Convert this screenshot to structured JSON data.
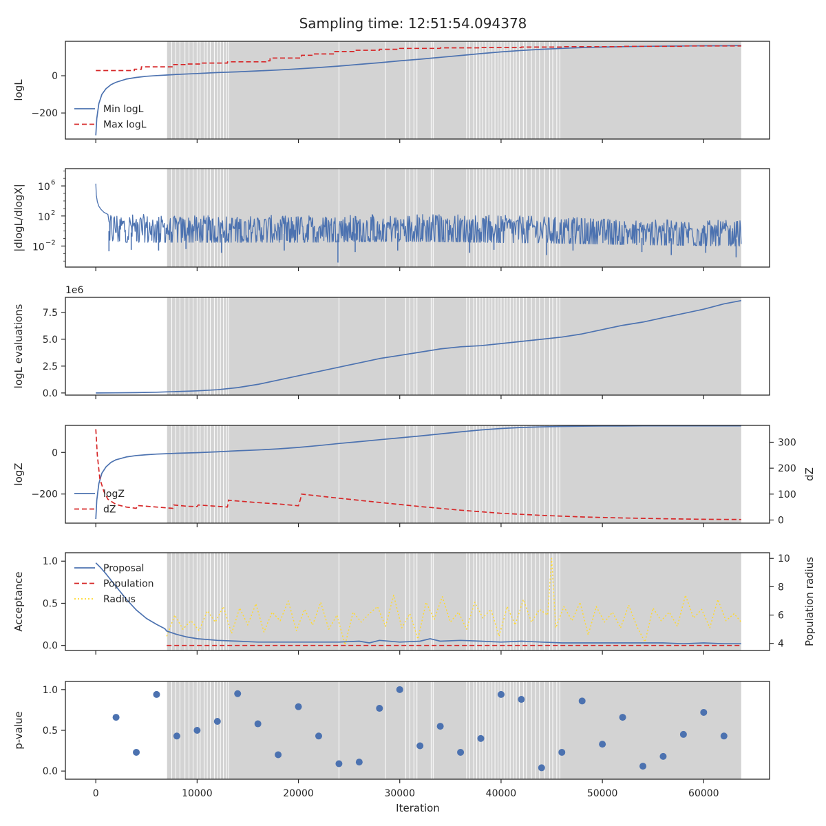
{
  "figure": {
    "title": "Sampling time: 12:51:54.094378",
    "xlabel": "Iteration",
    "x_tick_labels": [
      "0",
      "10000",
      "20000",
      "30000",
      "40000",
      "50000",
      "60000"
    ],
    "xlim": [
      -3000,
      66500
    ],
    "background_colors": {
      "plot": "#ffffff",
      "shaded": "#d3d3d3",
      "boundary_line": "#ffffff"
    },
    "shaded_region": [
      7000,
      63700
    ],
    "shaded_boundaries": [
      7000,
      7500,
      7900,
      8300,
      8800,
      9200,
      9600,
      10000,
      10300,
      10700,
      11000,
      11300,
      11700,
      12000,
      12300,
      12600,
      12900,
      13100,
      24000,
      28600,
      30600,
      31000,
      31400,
      31700,
      33100,
      33300,
      36600,
      36900,
      37300,
      37600,
      37900,
      38200,
      38500,
      38800,
      39100,
      39400,
      39700,
      40000,
      40300,
      40600,
      40900,
      41200,
      41500,
      41800,
      42200,
      42500,
      43000,
      43400,
      43800,
      44300,
      44800,
      45100,
      45500,
      45800
    ],
    "colors": {
      "blue": "#4c72b0",
      "red": "#d62728",
      "yellow": "#ffd92f"
    }
  },
  "chart_data": [
    {
      "type": "line",
      "ylabel": "logL",
      "ylim": [
        -340,
        185
      ],
      "y_ticks": [
        0,
        -200
      ],
      "y_tick_labels": [
        "0",
        "−200"
      ],
      "legend_placement": "lower-left",
      "series": [
        {
          "name": "Min logL",
          "style": "solid",
          "color": "#4c72b0",
          "x": [
            0,
            100,
            300,
            600,
            1000,
            1500,
            2000,
            3000,
            4000,
            5000,
            6000,
            7000,
            8000,
            10000,
            12000,
            14000,
            16000,
            18000,
            20000,
            22000,
            24000,
            26000,
            28000,
            30000,
            32000,
            34000,
            36000,
            38000,
            40000,
            42000,
            44000,
            46000,
            48000,
            50000,
            52000,
            54000,
            56000,
            58000,
            60000,
            62000,
            63700
          ],
          "y": [
            -320,
            -230,
            -150,
            -100,
            -70,
            -48,
            -35,
            -18,
            -9,
            -3,
            1,
            4,
            7,
            12,
            17,
            21,
            26,
            31,
            37,
            44,
            52,
            61,
            70,
            80,
            89,
            99,
            109,
            119,
            128,
            136,
            142,
            147,
            151,
            154,
            156,
            158,
            159,
            160,
            161,
            161,
            162
          ]
        },
        {
          "name": "Max logL",
          "style": "dashed",
          "color": "#d62728",
          "x": [
            0,
            3800,
            3800,
            4500,
            4500,
            7600,
            7600,
            9000,
            9000,
            10300,
            10300,
            13000,
            13000,
            16800,
            16800,
            17200,
            17200,
            20300,
            20300,
            21500,
            21500,
            23500,
            23500,
            25500,
            25500,
            28000,
            28000,
            30000,
            30000,
            34000,
            34000,
            38000,
            38000,
            42000,
            42000,
            46000,
            46000,
            52000,
            52000,
            58000,
            58000,
            63700
          ],
          "y": [
            28,
            28,
            35,
            35,
            48,
            48,
            60,
            60,
            63,
            63,
            68,
            68,
            75,
            75,
            80,
            80,
            95,
            95,
            110,
            110,
            117,
            117,
            130,
            130,
            137,
            137,
            142,
            142,
            147,
            147,
            150,
            150,
            152,
            152,
            154,
            154,
            156,
            156,
            158,
            158,
            160,
            160
          ]
        }
      ]
    },
    {
      "type": "line",
      "ylabel": "|dlogL/dlogX|",
      "y_scale": "log",
      "ylim_log10": [
        -4.8,
        8.3
      ],
      "y_ticks_log10": [
        6,
        2,
        -2
      ],
      "y_tick_labels": [
        "10",
        "10",
        "10"
      ],
      "y_tick_exponents": [
        "6",
        "2",
        "−2"
      ],
      "series": [
        {
          "name": "",
          "style": "solid",
          "color": "#4c72b0",
          "x_range": [
            0,
            63700
          ],
          "spike_x": [
            0,
            50,
            150,
            300,
            500,
            800,
            1200
          ],
          "spike_log10": [
            6.3,
            4.8,
            3.9,
            3.3,
            2.9,
            2.5,
            2.2
          ],
          "envelope_x": [
            0,
            7000,
            14000,
            21000,
            28000,
            33000,
            38000,
            45000,
            52000,
            58000,
            63700
          ],
          "upper_log10": [
            2.6,
            2.0,
            2.1,
            2.1,
            2.2,
            2.3,
            2.2,
            1.9,
            1.6,
            1.5,
            1.4
          ],
          "lower_log10": [
            -1.5,
            -1.5,
            -1.5,
            -1.5,
            -1.4,
            -1.4,
            -1.5,
            -1.6,
            -1.8,
            -1.9,
            -2.0
          ],
          "deep_dips_x": [
            1300,
            3500,
            6200,
            8900,
            12400,
            18600,
            23900,
            25600,
            29800,
            36900,
            39300,
            44500,
            47100,
            53900,
            56800,
            60200,
            63200
          ],
          "deep_dips_log10": [
            -2.7,
            -2.5,
            -2.6,
            -2.4,
            -2.9,
            -2.6,
            -4.2,
            -2.8,
            -2.6,
            -2.9,
            -2.5,
            -3.2,
            -2.6,
            -2.8,
            -3.2,
            -2.9,
            -3.5
          ]
        }
      ]
    },
    {
      "type": "line",
      "ylabel": "logL evaluations",
      "ylim": [
        -0.2,
        8.9
      ],
      "y_ticks": [
        0.0,
        2.5,
        5.0,
        7.5
      ],
      "y_tick_labels": [
        "0.0",
        "2.5",
        "5.0",
        "7.5"
      ],
      "scale_label": "1e6",
      "series": [
        {
          "name": "",
          "style": "solid",
          "color": "#4c72b0",
          "x": [
            0,
            2000,
            4000,
            6000,
            7000,
            8000,
            10000,
            12000,
            14000,
            16000,
            18000,
            20000,
            22000,
            24000,
            26000,
            28000,
            30000,
            32000,
            34000,
            36000,
            38000,
            40000,
            42000,
            44000,
            46000,
            48000,
            50000,
            52000,
            54000,
            56000,
            58000,
            60000,
            62000,
            63700
          ],
          "y": [
            0,
            0.01,
            0.03,
            0.07,
            0.1,
            0.13,
            0.2,
            0.3,
            0.5,
            0.8,
            1.2,
            1.6,
            2.0,
            2.4,
            2.8,
            3.2,
            3.5,
            3.8,
            4.1,
            4.3,
            4.4,
            4.6,
            4.8,
            5.0,
            5.2,
            5.5,
            5.9,
            6.3,
            6.6,
            7.0,
            7.4,
            7.8,
            8.3,
            8.6
          ]
        }
      ]
    },
    {
      "type": "line",
      "ylabel": "logZ",
      "ylim": [
        -340,
        130
      ],
      "y_ticks": [
        0,
        -200
      ],
      "y_tick_labels": [
        "0",
        "−200"
      ],
      "y2label": "dZ",
      "y2lim": [
        -12,
        365
      ],
      "y2_ticks": [
        0,
        100,
        200,
        300
      ],
      "y2_tick_labels": [
        "0",
        "100",
        "200",
        "300"
      ],
      "legend_placement": "lower-left",
      "series": [
        {
          "name": "logZ",
          "style": "solid",
          "color": "#4c72b0",
          "axis": "left",
          "x": [
            0,
            100,
            300,
            600,
            1000,
            1500,
            2000,
            3000,
            4000,
            5000,
            6000,
            7000,
            8000,
            10000,
            12000,
            14000,
            16000,
            18000,
            20000,
            22000,
            24000,
            26000,
            28000,
            30000,
            32000,
            34000,
            36000,
            38000,
            40000,
            42000,
            44000,
            46000,
            48000,
            50000,
            52000,
            54000,
            56000,
            58000,
            60000,
            62000,
            63700
          ],
          "y": [
            -320,
            -230,
            -150,
            -100,
            -70,
            -48,
            -35,
            -22,
            -15,
            -11,
            -8,
            -6,
            -4,
            -1,
            3,
            8,
            12,
            17,
            24,
            33,
            43,
            52,
            61,
            70,
            79,
            89,
            99,
            108,
            115,
            120,
            123,
            125,
            126,
            127,
            127,
            128,
            128,
            128,
            128,
            128,
            128
          ]
        },
        {
          "name": "dZ",
          "style": "dashed",
          "color": "#d62728",
          "axis": "right",
          "x": [
            0,
            150,
            400,
            800,
            1200,
            2000,
            3000,
            4000,
            4100,
            7000,
            7600,
            7700,
            9000,
            10000,
            10100,
            13000,
            13100,
            13200,
            16000,
            18000,
            20000,
            20200,
            20300,
            24000,
            28000,
            32000,
            36000,
            40000,
            44000,
            48000,
            52000,
            56000,
            60000,
            63700
          ],
          "y": [
            350,
            250,
            160,
            110,
            80,
            60,
            50,
            45,
            56,
            47,
            45,
            58,
            53,
            52,
            58,
            50,
            77,
            76,
            67,
            62,
            55,
            80,
            100,
            84,
            68,
            52,
            38,
            26,
            18,
            12,
            8,
            5,
            3,
            2
          ]
        }
      ]
    },
    {
      "type": "line",
      "ylabel": "Acceptance",
      "ylim": [
        -0.06,
        1.1
      ],
      "y_ticks": [
        0.0,
        0.5,
        1.0
      ],
      "y_tick_labels": [
        "0.0",
        "0.5",
        "1.0"
      ],
      "y2label": "Population radius",
      "y2lim": [
        3.5,
        10.4
      ],
      "y2_ticks": [
        4,
        6,
        8,
        10
      ],
      "y2_tick_labels": [
        "4",
        "6",
        "8",
        "10"
      ],
      "legend_placement": "upper-left",
      "series": [
        {
          "name": "Proposal",
          "style": "solid",
          "color": "#4c72b0",
          "axis": "left",
          "x": [
            0,
            500,
            1000,
            2000,
            3000,
            4000,
            5000,
            6000,
            6800,
            7000,
            8000,
            9000,
            10000,
            12000,
            14000,
            16000,
            18000,
            20000,
            22000,
            24000,
            26000,
            27000,
            28000,
            30000,
            32000,
            33000,
            34000,
            36000,
            38000,
            40000,
            42000,
            44000,
            46000,
            48000,
            50000,
            52000,
            54000,
            56000,
            58000,
            60000,
            62000,
            63700
          ],
          "y": [
            0.98,
            0.92,
            0.85,
            0.7,
            0.55,
            0.42,
            0.32,
            0.25,
            0.2,
            0.17,
            0.13,
            0.1,
            0.08,
            0.06,
            0.05,
            0.04,
            0.04,
            0.04,
            0.04,
            0.04,
            0.05,
            0.03,
            0.06,
            0.04,
            0.05,
            0.08,
            0.05,
            0.06,
            0.05,
            0.04,
            0.05,
            0.04,
            0.03,
            0.03,
            0.03,
            0.03,
            0.03,
            0.03,
            0.02,
            0.03,
            0.02,
            0.02
          ]
        },
        {
          "name": "Population",
          "style": "dashed",
          "color": "#d62728",
          "axis": "left",
          "x": [
            7000,
            63700
          ],
          "y": [
            0.0,
            0.0
          ]
        },
        {
          "name": "Radius",
          "style": "dotted",
          "color": "#ffd92f",
          "axis": "right",
          "x": [
            7000,
            7800,
            8600,
            9400,
            10200,
            11000,
            11800,
            12600,
            13400,
            14200,
            15000,
            15800,
            16600,
            17400,
            18200,
            19000,
            19800,
            20600,
            21400,
            22200,
            23000,
            23800,
            24600,
            25400,
            26200,
            27000,
            27800,
            28600,
            29400,
            30200,
            31000,
            31800,
            32600,
            33400,
            34200,
            35000,
            35800,
            36600,
            37400,
            38200,
            39000,
            39800,
            40600,
            41400,
            42200,
            43000,
            43800,
            44600,
            45000,
            45400,
            46200,
            47000,
            47800,
            48600,
            49400,
            50200,
            51000,
            51800,
            52600,
            53400,
            54200,
            55000,
            55800,
            56600,
            57400,
            58200,
            59000,
            59800,
            60600,
            61400,
            62200,
            63000,
            63700
          ],
          "y": [
            4.5,
            6.0,
            5.0,
            5.6,
            4.9,
            6.3,
            5.5,
            6.6,
            4.7,
            6.5,
            5.3,
            6.8,
            4.8,
            6.2,
            5.6,
            7.0,
            4.9,
            6.4,
            5.3,
            6.9,
            5.0,
            6.0,
            3.9,
            6.2,
            5.5,
            6.1,
            6.6,
            5.2,
            7.4,
            5.1,
            6.1,
            4.3,
            6.9,
            5.7,
            7.3,
            5.5,
            6.2,
            5.0,
            6.9,
            5.8,
            6.4,
            4.5,
            6.6,
            5.3,
            7.1,
            5.5,
            6.4,
            6.0,
            10.0,
            5.1,
            6.6,
            5.6,
            6.9,
            4.6,
            6.6,
            5.5,
            6.2,
            5.1,
            6.7,
            5.2,
            4.1,
            6.5,
            5.6,
            6.2,
            5.2,
            7.4,
            5.8,
            6.4,
            5.1,
            7.1,
            5.6,
            6.1,
            5.5
          ]
        }
      ]
    },
    {
      "type": "scatter",
      "ylabel": "p-value",
      "ylim": [
        -0.1,
        1.1
      ],
      "y_ticks": [
        0.0,
        0.5,
        1.0
      ],
      "y_tick_labels": [
        "0.0",
        "0.5",
        "1.0"
      ],
      "series": [
        {
          "name": "",
          "color": "#4c72b0",
          "x": [
            2000,
            4000,
            6000,
            8000,
            10000,
            12000,
            14000,
            16000,
            18000,
            20000,
            22000,
            24000,
            26000,
            28000,
            30000,
            32000,
            34000,
            36000,
            38000,
            40000,
            42000,
            44000,
            46000,
            48000,
            50000,
            52000,
            54000,
            56000,
            58000,
            60000,
            62000
          ],
          "y": [
            0.66,
            0.23,
            0.94,
            0.43,
            0.5,
            0.61,
            0.95,
            0.58,
            0.2,
            0.79,
            0.43,
            0.09,
            0.11,
            0.77,
            1.0,
            0.31,
            0.55,
            0.23,
            0.4,
            0.94,
            0.88,
            0.04,
            0.23,
            0.86,
            0.33,
            0.66,
            0.06,
            0.18,
            0.45,
            0.72,
            0.43
          ]
        }
      ]
    }
  ]
}
